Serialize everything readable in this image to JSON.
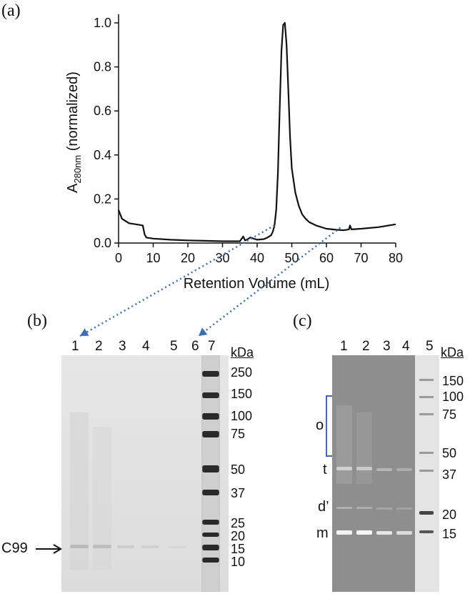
{
  "panels": {
    "a": "(a)",
    "b": "(b)",
    "c": "(c)"
  },
  "chart_data": {
    "type": "line",
    "title": "",
    "xlabel": "Retention Volume (mL)",
    "ylabel_main": "A",
    "ylabel_sub": "280nm",
    "ylabel_rest": " (normalized)",
    "xlim": [
      0,
      80
    ],
    "ylim": [
      0,
      1.05
    ],
    "xticks": [
      0,
      10,
      20,
      30,
      40,
      50,
      60,
      70,
      80
    ],
    "yticks": [
      0.0,
      0.2,
      0.4,
      0.6,
      0.8,
      1.0
    ],
    "ytick_labels": [
      "0.0",
      "0.2",
      "0.4",
      "0.6",
      "0.8",
      "1.0"
    ],
    "series": [
      {
        "name": "A280",
        "x": [
          0,
          0.5,
          1,
          2,
          3,
          5,
          7,
          7.5,
          8,
          10,
          15,
          20,
          25,
          30,
          35,
          36,
          36.5,
          37,
          38,
          39,
          40,
          42,
          43,
          44,
          44.5,
          45,
          45.5,
          46,
          46.5,
          47,
          47.5,
          48,
          48.5,
          49,
          49.5,
          50,
          51,
          52,
          53,
          54,
          55,
          57,
          60,
          63,
          65,
          66.5,
          66.8,
          67.2,
          70,
          75,
          80
        ],
        "y": [
          0.15,
          0.13,
          0.11,
          0.1,
          0.09,
          0.085,
          0.08,
          0.04,
          0.025,
          0.02,
          0.015,
          0.012,
          0.01,
          0.008,
          0.008,
          0.03,
          0.012,
          0.015,
          0.025,
          0.02,
          0.015,
          0.018,
          0.025,
          0.035,
          0.05,
          0.08,
          0.15,
          0.32,
          0.6,
          0.87,
          0.99,
          1.0,
          0.9,
          0.7,
          0.48,
          0.34,
          0.23,
          0.17,
          0.13,
          0.11,
          0.095,
          0.08,
          0.065,
          0.06,
          0.058,
          0.062,
          0.08,
          0.062,
          0.065,
          0.072,
          0.085
        ]
      }
    ],
    "arrows": [
      {
        "from_x": 45,
        "to_lane": "1"
      },
      {
        "from_x": 64,
        "to_lane": "6"
      }
    ]
  },
  "gel_b": {
    "lanes": [
      "1",
      "2",
      "3",
      "4",
      "5",
      "6",
      "7"
    ],
    "kda_header": "kDa",
    "markers": [
      "250",
      "150",
      "100",
      "75",
      "50",
      "37",
      "25",
      "20",
      "15",
      "10"
    ],
    "band_label": "C99"
  },
  "gel_c": {
    "lanes": [
      "1",
      "2",
      "3",
      "4",
      "5"
    ],
    "kda_header": "kDa",
    "markers": [
      "150",
      "100",
      "75",
      "50",
      "37",
      "20",
      "15"
    ],
    "species": [
      "o",
      "t",
      "d’",
      "m"
    ]
  }
}
